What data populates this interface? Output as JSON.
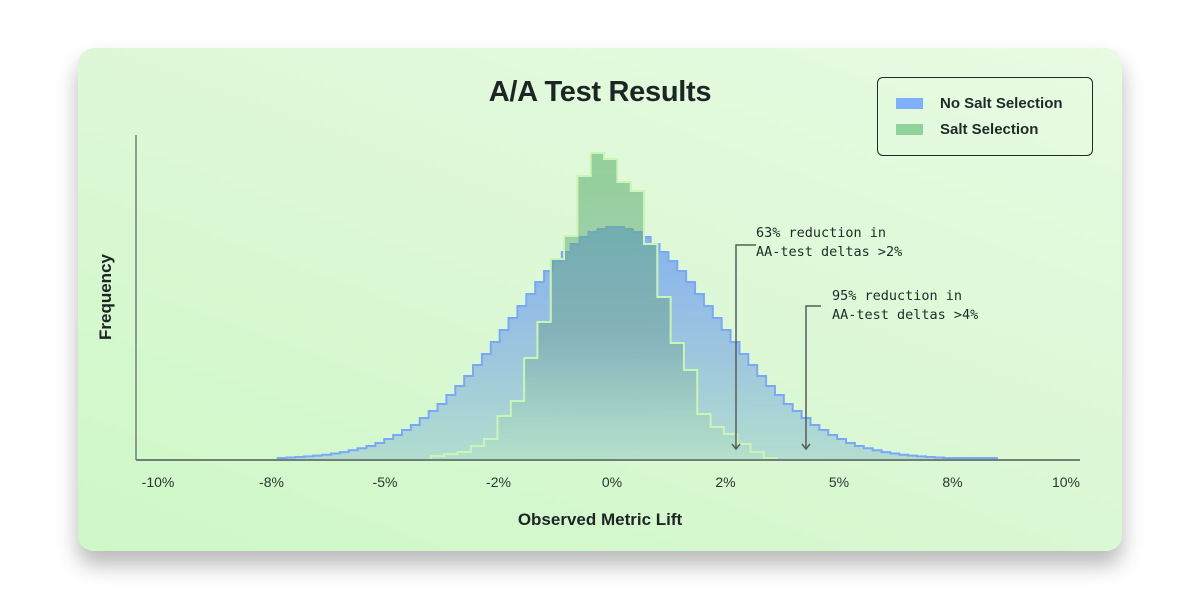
{
  "chart_data": {
    "type": "histogram",
    "title": "A/A Test Results",
    "xlabel": "Observed Metric Lift",
    "ylabel": "Frequency",
    "xlim": [
      -10,
      10
    ],
    "x_tick_labels": [
      "-10%",
      "-8%",
      "-5%",
      "-2%",
      "0%",
      "2%",
      "5%",
      "8%",
      "10%"
    ],
    "grid": false,
    "legend_position": "top-right",
    "series": [
      {
        "name": "No Salt Selection",
        "color": "#7fb0ff",
        "bin_start": -7.8,
        "bin_width": 0.2,
        "values": [
          1,
          1.5,
          2,
          2.6,
          3.4,
          4.3,
          5.5,
          6.9,
          8.7,
          10.8,
          13,
          16,
          20,
          24,
          29,
          34,
          41,
          48,
          55,
          64,
          73,
          83,
          94,
          105,
          117,
          129,
          141,
          153,
          165,
          177,
          188,
          198,
          207,
          215,
          222,
          227,
          230,
          232,
          232,
          230,
          227,
          222,
          215,
          207,
          198,
          188,
          177,
          165,
          153,
          141,
          129,
          117,
          105,
          94,
          83,
          73,
          64,
          55,
          48,
          41,
          34,
          29,
          24,
          20,
          16,
          13,
          10.8,
          8.7,
          6.9,
          5.5,
          4.3,
          3.4,
          2.6,
          2,
          1.5,
          1,
          0.9,
          0.7,
          0.5,
          0.4,
          0.3
        ]
      },
      {
        "name": "Salt Selection",
        "color": "#8fd39a",
        "bin_start": -4.35,
        "bin_width": 0.3,
        "values": [
          3,
          5,
          7,
          13,
          20,
          43,
          58,
          101,
          137,
          200,
          223,
          283,
          306,
          300,
          277,
          268,
          215,
          162,
          116,
          89,
          45,
          32,
          25,
          15,
          7,
          1
        ]
      }
    ],
    "annotations": [
      {
        "text": "63% reduction in\nAA-test deltas >2%",
        "x": 2.5
      },
      {
        "text": "95% reduction in\nAA-test deltas >4%",
        "x": 4.1
      }
    ]
  }
}
